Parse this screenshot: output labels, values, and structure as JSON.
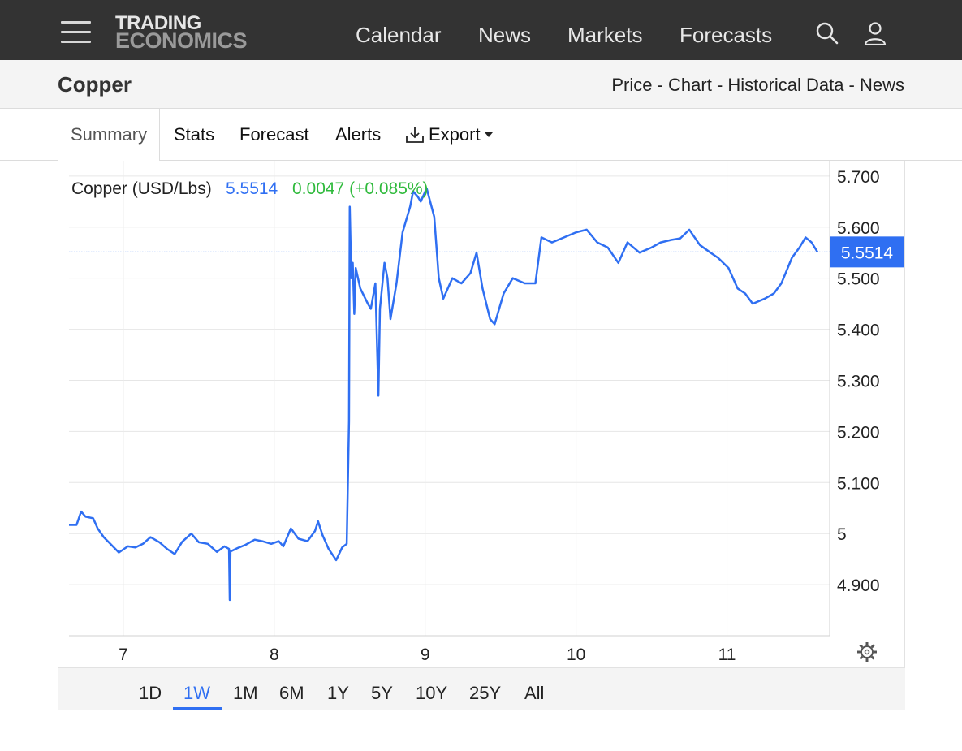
{
  "brand": {
    "line1": "TRADING",
    "line2": "ECONOMICS"
  },
  "nav": {
    "calendar": "Calendar",
    "news": "News",
    "markets": "Markets",
    "forecasts": "Forecasts"
  },
  "header": {
    "title": "Copper",
    "breadcrumb": "Price - Chart - Historical Data - News"
  },
  "tabs": {
    "summary": "Summary",
    "stats": "Stats",
    "forecast": "Forecast",
    "alerts": "Alerts",
    "export": "Export"
  },
  "chart_info": {
    "name": "Copper (USD/Lbs)",
    "price": "5.5514",
    "change": "0.0047 (+0.085%)",
    "last_label": "5.5514"
  },
  "ranges": [
    "1D",
    "1W",
    "1M",
    "6M",
    "1Y",
    "5Y",
    "10Y",
    "25Y",
    "All"
  ],
  "active_range": "1W",
  "colors": {
    "line": "#2f6ff2",
    "positive": "#2fba3c",
    "header_bg": "#333333"
  },
  "chart_data": {
    "type": "line",
    "title": "Copper (USD/Lbs)",
    "xlabel": "",
    "ylabel": "",
    "x_ticks": [
      7,
      8,
      9,
      10,
      11
    ],
    "y_ticks": [
      4.9,
      5.0,
      5.1,
      5.2,
      5.3,
      5.4,
      5.5,
      5.6,
      5.7
    ],
    "y_tick_labels": [
      "4.900",
      "5",
      "5.100",
      "5.200",
      "5.300",
      "5.400",
      "5.500",
      "5.600",
      "5.700"
    ],
    "xlim": [
      6.64,
      11.68
    ],
    "ylim": [
      4.8,
      5.73
    ],
    "grid": true,
    "last_value": 5.5514,
    "series": [
      {
        "values": [
          [
            6.64,
            5.017
          ],
          [
            6.69,
            5.017
          ],
          [
            6.72,
            5.043
          ],
          [
            6.75,
            5.033
          ],
          [
            6.8,
            5.03
          ],
          [
            6.83,
            5.01
          ],
          [
            6.87,
            4.993
          ],
          [
            6.92,
            4.978
          ],
          [
            6.97,
            4.963
          ],
          [
            7.03,
            4.975
          ],
          [
            7.08,
            4.973
          ],
          [
            7.13,
            4.98
          ],
          [
            7.18,
            4.993
          ],
          [
            7.24,
            4.983
          ],
          [
            7.29,
            4.97
          ],
          [
            7.34,
            4.96
          ],
          [
            7.39,
            4.984
          ],
          [
            7.45,
            5.0
          ],
          [
            7.5,
            4.983
          ],
          [
            7.56,
            4.98
          ],
          [
            7.62,
            4.964
          ],
          [
            7.67,
            4.975
          ],
          [
            7.7,
            4.97
          ],
          [
            7.705,
            4.87
          ],
          [
            7.71,
            4.965
          ],
          [
            7.76,
            4.972
          ],
          [
            7.81,
            4.978
          ],
          [
            7.87,
            4.988
          ],
          [
            7.92,
            4.985
          ],
          [
            7.98,
            4.98
          ],
          [
            8.03,
            4.985
          ],
          [
            8.06,
            4.975
          ],
          [
            8.11,
            5.01
          ],
          [
            8.16,
            4.99
          ],
          [
            8.22,
            4.985
          ],
          [
            8.27,
            5.005
          ],
          [
            8.29,
            5.024
          ],
          [
            8.32,
            4.997
          ],
          [
            8.36,
            4.97
          ],
          [
            8.41,
            4.948
          ],
          [
            8.45,
            4.973
          ],
          [
            8.48,
            4.98
          ],
          [
            8.495,
            5.22
          ],
          [
            8.5,
            5.64
          ],
          [
            8.51,
            5.5
          ],
          [
            8.52,
            5.53
          ],
          [
            8.53,
            5.43
          ],
          [
            8.54,
            5.52
          ],
          [
            8.57,
            5.48
          ],
          [
            8.62,
            5.45
          ],
          [
            8.64,
            5.44
          ],
          [
            8.67,
            5.49
          ],
          [
            8.69,
            5.27
          ],
          [
            8.7,
            5.44
          ],
          [
            8.73,
            5.53
          ],
          [
            8.75,
            5.5
          ],
          [
            8.77,
            5.42
          ],
          [
            8.81,
            5.49
          ],
          [
            8.85,
            5.59
          ],
          [
            8.9,
            5.64
          ],
          [
            8.92,
            5.67
          ],
          [
            8.95,
            5.66
          ],
          [
            8.97,
            5.65
          ],
          [
            9.01,
            5.676
          ],
          [
            9.06,
            5.62
          ],
          [
            9.09,
            5.5
          ],
          [
            9.12,
            5.46
          ],
          [
            9.18,
            5.5
          ],
          [
            9.24,
            5.49
          ],
          [
            9.3,
            5.51
          ],
          [
            9.34,
            5.55
          ],
          [
            9.38,
            5.48
          ],
          [
            9.43,
            5.42
          ],
          [
            9.46,
            5.41
          ],
          [
            9.52,
            5.47
          ],
          [
            9.58,
            5.5
          ],
          [
            9.66,
            5.49
          ],
          [
            9.73,
            5.49
          ],
          [
            9.77,
            5.58
          ],
          [
            9.84,
            5.57
          ],
          [
            9.92,
            5.58
          ],
          [
            10.0,
            5.59
          ],
          [
            10.07,
            5.595
          ],
          [
            10.14,
            5.57
          ],
          [
            10.21,
            5.56
          ],
          [
            10.28,
            5.53
          ],
          [
            10.34,
            5.57
          ],
          [
            10.42,
            5.55
          ],
          [
            10.5,
            5.56
          ],
          [
            10.56,
            5.57
          ],
          [
            10.63,
            5.575
          ],
          [
            10.69,
            5.578
          ],
          [
            10.75,
            5.595
          ],
          [
            10.82,
            5.565
          ],
          [
            10.89,
            5.55
          ],
          [
            10.94,
            5.54
          ],
          [
            11.01,
            5.52
          ],
          [
            11.07,
            5.48
          ],
          [
            11.12,
            5.47
          ],
          [
            11.17,
            5.45
          ],
          [
            11.25,
            5.46
          ],
          [
            11.31,
            5.47
          ],
          [
            11.36,
            5.49
          ],
          [
            11.43,
            5.54
          ],
          [
            11.48,
            5.56
          ],
          [
            11.52,
            5.58
          ],
          [
            11.56,
            5.57
          ],
          [
            11.6,
            5.551
          ]
        ]
      }
    ]
  }
}
